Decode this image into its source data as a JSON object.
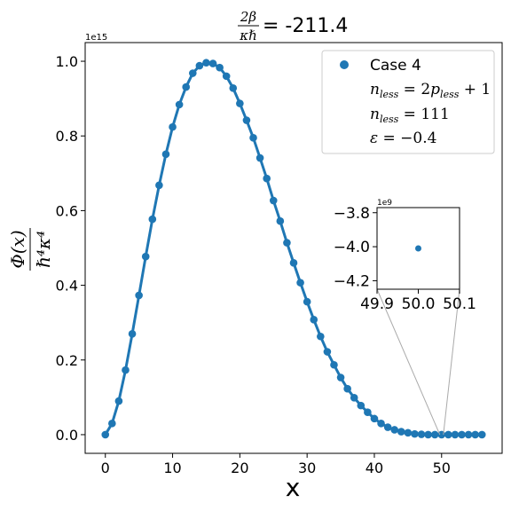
{
  "chart_data": {
    "type": "line",
    "title_num": "2β",
    "title_den": "κℏ",
    "title_value": "= -211.4",
    "xlabel": "x",
    "ylabel_num": "Φ(x)",
    "ylabel_den": "ℏ⁴κ⁴",
    "y_scale_label": "1e15",
    "xlim": [
      -3,
      59
    ],
    "ylim": [
      -0.05,
      1.05
    ],
    "x_ticks": [
      "0",
      "10",
      "20",
      "30",
      "40",
      "50"
    ],
    "y_ticks": [
      "0.0",
      "0.2",
      "0.4",
      "0.6",
      "0.8",
      "1.0"
    ],
    "grid": false,
    "legend_position": "top-right",
    "legend": {
      "series": "Case 4",
      "line1": "n_less = 2p_less + 1",
      "line2": "n_less = 111",
      "line3": "ε = −0.4"
    },
    "series": [
      {
        "name": "Case 4",
        "color": "#1f77b4",
        "x": [
          0,
          1,
          2,
          3,
          4,
          5,
          6,
          7,
          8,
          9,
          10,
          11,
          12,
          13,
          14,
          15,
          16,
          17,
          18,
          19,
          20,
          21,
          22,
          23,
          24,
          25,
          26,
          27,
          28,
          29,
          30,
          31,
          32,
          33,
          34,
          35,
          36,
          37,
          38,
          39,
          40,
          41,
          42,
          43,
          44,
          45,
          46,
          47,
          48,
          49,
          50,
          51,
          52,
          53,
          54,
          55,
          56
        ],
        "y": [
          0.0,
          0.03,
          0.09,
          0.173,
          0.27,
          0.373,
          0.477,
          0.577,
          0.668,
          0.751,
          0.824,
          0.884,
          0.931,
          0.968,
          0.988,
          0.996,
          0.994,
          0.983,
          0.96,
          0.928,
          0.887,
          0.842,
          0.795,
          0.741,
          0.686,
          0.627,
          0.572,
          0.514,
          0.46,
          0.407,
          0.356,
          0.308,
          0.263,
          0.222,
          0.187,
          0.153,
          0.123,
          0.099,
          0.078,
          0.06,
          0.043,
          0.03,
          0.02,
          0.013,
          0.008,
          0.005,
          0.002,
          0.001,
          0.0,
          0.0,
          0.0,
          0.0,
          0.0,
          0.0,
          0.0,
          0.0,
          0.0
        ]
      }
    ],
    "inset": {
      "scale_label": "1e9",
      "xlim": [
        49.9,
        50.1
      ],
      "ylim": [
        -4.25,
        -3.77
      ],
      "x_ticks": [
        "49.9",
        "50.0",
        "50.1"
      ],
      "y_ticks": [
        "−3.8",
        "−4.0",
        "−4.2"
      ],
      "point": {
        "x": 50.0,
        "y": -4.01
      },
      "zoom_target_x": 50.0
    }
  }
}
